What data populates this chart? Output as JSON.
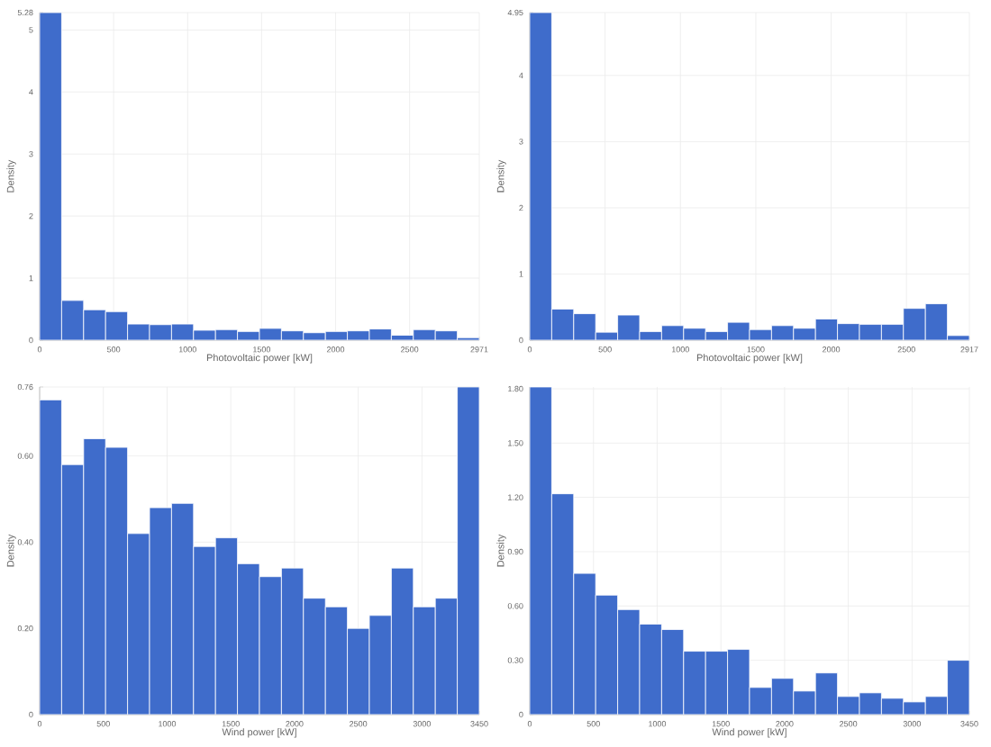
{
  "chart_data": [
    {
      "type": "histogram",
      "xlabel": "Photovoltaic power [kW]",
      "ylabel": "Density",
      "color": "#3f6ccb",
      "grid": true,
      "bins": [
        0,
        148.55,
        297.1,
        445.65,
        594.2,
        742.75,
        891.3,
        1039.85,
        1188.4,
        1336.95,
        1485.5,
        1634.05,
        1782.6,
        1931.15,
        2079.7,
        2228.25,
        2376.8,
        2525.35,
        2673.9,
        2822.45,
        2971
      ],
      "values": [
        5.28,
        0.64,
        0.49,
        0.46,
        0.26,
        0.25,
        0.26,
        0.16,
        0.17,
        0.14,
        0.19,
        0.15,
        0.12,
        0.14,
        0.15,
        0.18,
        0.08,
        0.17,
        0.15,
        0.04
      ],
      "xlim": [
        0,
        2971
      ],
      "xticks": [
        0,
        500,
        1000,
        1500,
        2000,
        2500,
        2971
      ],
      "ylim": [
        0,
        5.28
      ],
      "yticks": [
        0,
        1,
        2,
        3,
        4,
        5,
        5.28
      ]
    },
    {
      "type": "histogram",
      "xlabel": "Photovoltaic power [kW]",
      "ylabel": "Density",
      "color": "#3f6ccb",
      "grid": true,
      "bins": [
        0,
        145.85,
        291.7,
        437.55,
        583.4,
        729.25,
        875.1,
        1020.95,
        1166.8,
        1312.65,
        1458.5,
        1604.35,
        1750.2,
        1896.05,
        2041.9,
        2187.75,
        2333.6,
        2479.45,
        2625.3,
        2771.15,
        2917
      ],
      "values": [
        4.95,
        0.47,
        0.4,
        0.12,
        0.38,
        0.13,
        0.22,
        0.18,
        0.13,
        0.27,
        0.16,
        0.22,
        0.18,
        0.32,
        0.25,
        0.24,
        0.24,
        0.48,
        0.55,
        0.07
      ],
      "xlim": [
        0,
        2917
      ],
      "xticks": [
        0,
        500,
        1000,
        1500,
        2000,
        2500,
        2917
      ],
      "ylim": [
        0,
        4.95
      ],
      "yticks": [
        0,
        1,
        2,
        3,
        4,
        4.95
      ]
    },
    {
      "type": "histogram",
      "xlabel": "Wind power [kW]",
      "ylabel": "Density",
      "color": "#3f6ccb",
      "grid": true,
      "bins": [
        0,
        172.5,
        345,
        517.5,
        690,
        862.5,
        1035,
        1207.5,
        1380,
        1552.5,
        1725,
        1897.5,
        2070,
        2242.5,
        2415,
        2587.5,
        2760,
        2932.5,
        3105,
        3277.5,
        3450
      ],
      "values": [
        0.73,
        0.58,
        0.64,
        0.62,
        0.42,
        0.48,
        0.49,
        0.39,
        0.41,
        0.35,
        0.32,
        0.34,
        0.27,
        0.25,
        0.2,
        0.23,
        0.34,
        0.25,
        0.27,
        0.76
      ],
      "xlim": [
        0,
        3450
      ],
      "xticks": [
        0,
        500,
        1000,
        1500,
        2000,
        2500,
        3000,
        3450
      ],
      "ylim": [
        0,
        0.76
      ],
      "yticks": [
        0,
        {
          "value": 0.2,
          "label": "0.20"
        },
        {
          "value": 0.4,
          "label": "0.40"
        },
        {
          "value": 0.6,
          "label": "0.60"
        },
        0.76
      ]
    },
    {
      "type": "histogram",
      "xlabel": "Wind power [kW]",
      "ylabel": "Density",
      "color": "#3f6ccb",
      "grid": true,
      "bins": [
        0,
        172.5,
        345,
        517.5,
        690,
        862.5,
        1035,
        1207.5,
        1380,
        1552.5,
        1725,
        1897.5,
        2070,
        2242.5,
        2415,
        2587.5,
        2760,
        2932.5,
        3105,
        3277.5,
        3450
      ],
      "values": [
        1.81,
        1.22,
        0.78,
        0.66,
        0.58,
        0.5,
        0.47,
        0.35,
        0.35,
        0.36,
        0.15,
        0.2,
        0.13,
        0.23,
        0.1,
        0.12,
        0.09,
        0.07,
        0.1,
        0.3
      ],
      "xlim": [
        0,
        3450
      ],
      "xticks": [
        0,
        500,
        1000,
        1500,
        2000,
        2500,
        3000,
        3450
      ],
      "ylim": [
        0,
        1.81
      ],
      "yticks": [
        0,
        {
          "value": 0.3,
          "label": "0.30"
        },
        {
          "value": 0.6,
          "label": "0.60"
        },
        {
          "value": 0.9,
          "label": "0.90"
        },
        {
          "value": 1.2,
          "label": "1.20"
        },
        {
          "value": 1.5,
          "label": "1.50"
        },
        {
          "value": 1.8,
          "label": "1.80"
        }
      ]
    }
  ]
}
